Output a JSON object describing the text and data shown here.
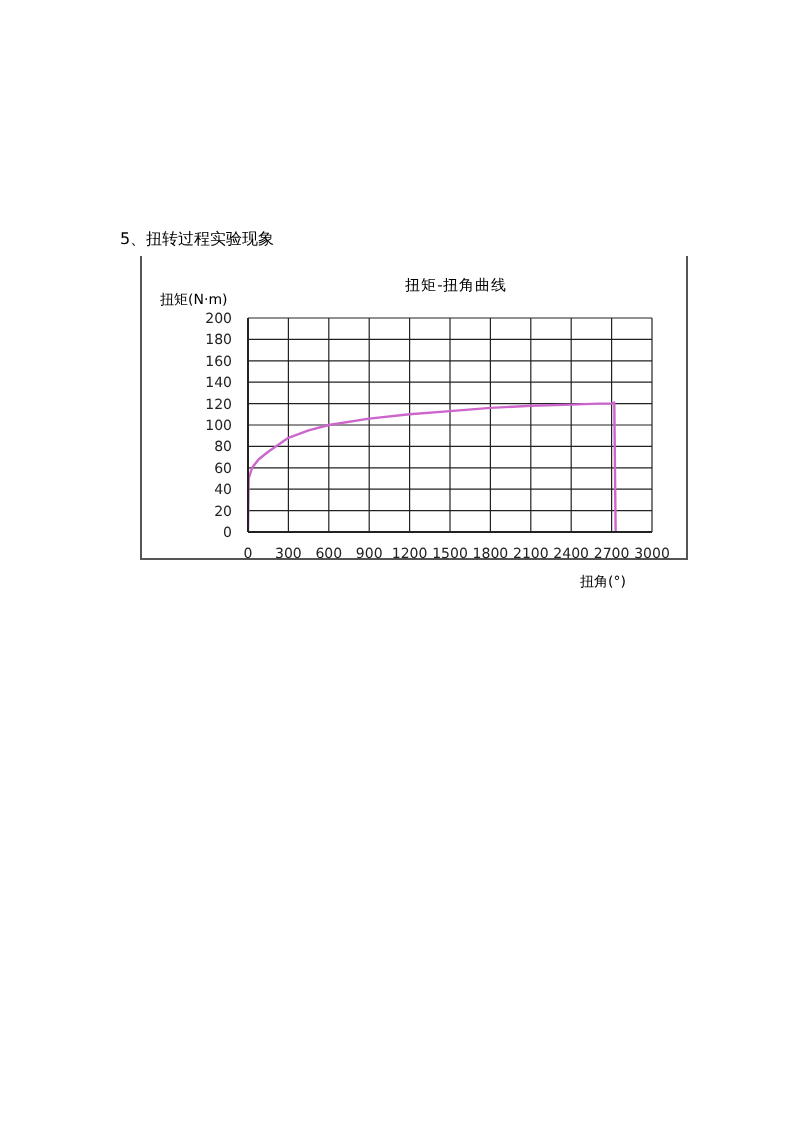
{
  "chart_data": {
    "type": "line",
    "title": "扭矩-扭角曲线",
    "annotations": [
      "5、扭转过程实验现象"
    ],
    "xlabel": "扭角(°)",
    "ylabel": "扭矩(N·m)",
    "series": [
      {
        "color": "#cc66cc",
        "x": [
          0,
          5,
          30,
          80,
          150,
          300,
          450,
          600,
          900,
          1200,
          1500,
          1800,
          2100,
          2400,
          2600,
          2700,
          2720,
          2730
        ],
        "values": [
          0,
          50,
          60,
          68,
          75,
          88,
          95,
          100,
          106,
          110,
          113,
          116,
          118,
          119,
          120,
          120,
          121,
          0
        ]
      }
    ],
    "xlim": [
      0,
      3000
    ],
    "xticks": [
      0,
      300,
      600,
      900,
      1200,
      1500,
      1800,
      2100,
      2400,
      2700,
      3000
    ],
    "ylim": [
      0,
      200
    ],
    "yticks": [
      0,
      20,
      40,
      60,
      80,
      100,
      120,
      140,
      160,
      180,
      200
    ],
    "grid": true,
    "marker": "none",
    "line_style": "solid"
  }
}
